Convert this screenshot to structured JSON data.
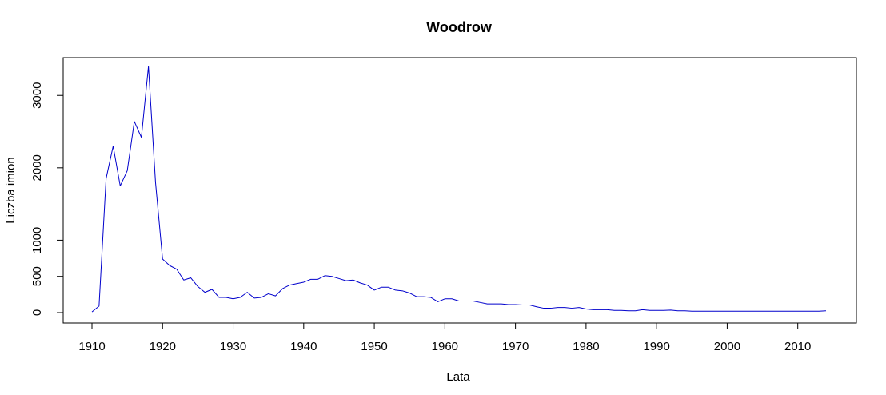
{
  "chart_data": {
    "type": "line",
    "title": "Woodrow",
    "xlabel": "Lata",
    "ylabel": "Liczba imion",
    "xlim": [
      1910,
      2014
    ],
    "ylim": [
      0,
      3400
    ],
    "xticks": [
      1910,
      1920,
      1930,
      1940,
      1950,
      1960,
      1970,
      1980,
      1990,
      2000,
      2010
    ],
    "yticks": [
      0,
      500,
      1000,
      2000,
      3000
    ],
    "grid": false,
    "series": [
      {
        "color": "#0000cc",
        "x": [
          1910,
          1911,
          1912,
          1913,
          1914,
          1915,
          1916,
          1917,
          1918,
          1919,
          1920,
          1921,
          1922,
          1923,
          1924,
          1925,
          1926,
          1927,
          1928,
          1929,
          1930,
          1931,
          1932,
          1933,
          1934,
          1935,
          1936,
          1937,
          1938,
          1939,
          1940,
          1941,
          1942,
          1943,
          1944,
          1945,
          1946,
          1947,
          1948,
          1949,
          1950,
          1951,
          1952,
          1953,
          1954,
          1955,
          1956,
          1957,
          1958,
          1959,
          1960,
          1961,
          1962,
          1963,
          1964,
          1965,
          1966,
          1967,
          1968,
          1969,
          1970,
          1971,
          1972,
          1973,
          1974,
          1975,
          1976,
          1977,
          1978,
          1979,
          1980,
          1981,
          1982,
          1983,
          1984,
          1985,
          1986,
          1987,
          1988,
          1989,
          1990,
          1991,
          1992,
          1993,
          1994,
          1995,
          1996,
          1997,
          1998,
          1999,
          2000,
          2001,
          2002,
          2003,
          2004,
          2005,
          2006,
          2007,
          2008,
          2009,
          2010,
          2011,
          2012,
          2013,
          2014
        ],
        "y": [
          10,
          90,
          1850,
          2300,
          1750,
          1960,
          2640,
          2420,
          3400,
          1800,
          740,
          650,
          600,
          450,
          480,
          360,
          280,
          320,
          210,
          210,
          190,
          210,
          280,
          200,
          210,
          260,
          230,
          330,
          380,
          400,
          420,
          460,
          460,
          510,
          500,
          470,
          440,
          450,
          410,
          380,
          310,
          350,
          350,
          310,
          300,
          270,
          220,
          220,
          210,
          150,
          190,
          190,
          160,
          160,
          160,
          140,
          120,
          120,
          120,
          110,
          110,
          105,
          105,
          80,
          60,
          60,
          70,
          70,
          60,
          70,
          50,
          40,
          40,
          40,
          30,
          30,
          25,
          25,
          40,
          30,
          30,
          30,
          35,
          25,
          25,
          20,
          20,
          20,
          20,
          20,
          20,
          20,
          20,
          20,
          20,
          20,
          20,
          20,
          20,
          20,
          20,
          20,
          20,
          20,
          25
        ]
      }
    ]
  }
}
